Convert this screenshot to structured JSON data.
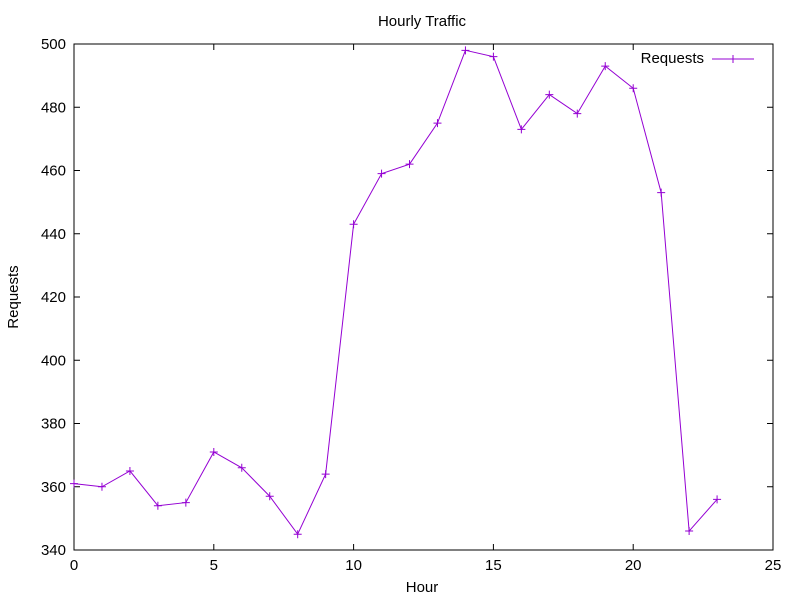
{
  "chart_data": {
    "type": "line",
    "title": "Hourly Traffic",
    "xlabel": "Hour",
    "ylabel": "Requests",
    "xlim": [
      0,
      25
    ],
    "ylim": [
      340,
      500
    ],
    "xticks": [
      0,
      5,
      10,
      15,
      20,
      25
    ],
    "yticks": [
      340,
      360,
      380,
      400,
      420,
      440,
      460,
      480,
      500
    ],
    "grid": false,
    "legend_position": "top-right",
    "series": [
      {
        "name": "Requests",
        "color": "#9400d3",
        "marker": "plus",
        "x": [
          0,
          1,
          2,
          3,
          4,
          5,
          6,
          7,
          8,
          9,
          10,
          11,
          12,
          13,
          14,
          15,
          16,
          17,
          18,
          19,
          20,
          21,
          22,
          23
        ],
        "y": [
          361,
          360,
          365,
          354,
          355,
          371,
          366,
          357,
          345,
          364,
          443,
          459,
          462,
          475,
          498,
          496,
          473,
          484,
          478,
          493,
          486,
          453,
          346,
          356
        ]
      }
    ]
  }
}
